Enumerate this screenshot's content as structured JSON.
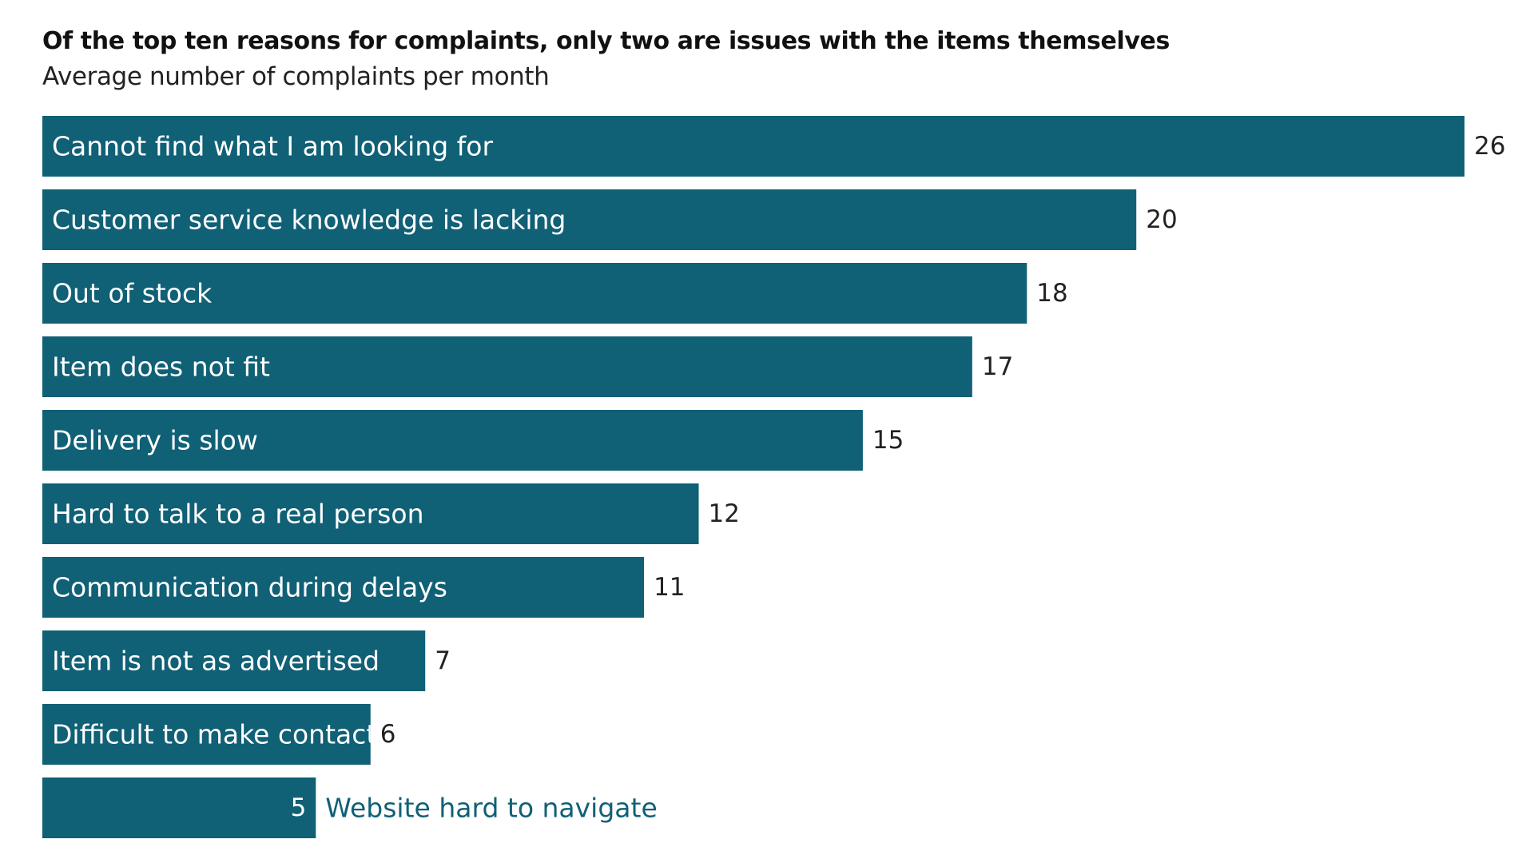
{
  "chart_data": {
    "type": "bar",
    "orientation": "horizontal",
    "title": "Of the top ten reasons for complaints, only two are issues with the items themselves",
    "subtitle": "Average number of complaints per month",
    "xlabel": "",
    "ylabel": "",
    "xlim": [
      0,
      26
    ],
    "grid": false,
    "legend": "none",
    "categories": [
      "Cannot find what I am looking for",
      "Customer service knowledge is lacking",
      "Out of stock",
      "Item does not fit",
      "Delivery is slow",
      "Hard to talk to a real person",
      "Communication during delays",
      "Item is not as advertised",
      "Difficult to make contact",
      "Website hard to navigate"
    ],
    "values": [
      26,
      20,
      18,
      17,
      15,
      12,
      11,
      7,
      6,
      5
    ],
    "value_labels": [
      "26",
      "20",
      "18",
      "17",
      "15",
      "12",
      "11",
      "7",
      "6",
      "5"
    ]
  },
  "colors": {
    "bar": "#106076",
    "bar_text": "#ffffff",
    "value_text": "#222222",
    "value_text_inside": "#ffffff",
    "outside_label_text": "#106076"
  }
}
